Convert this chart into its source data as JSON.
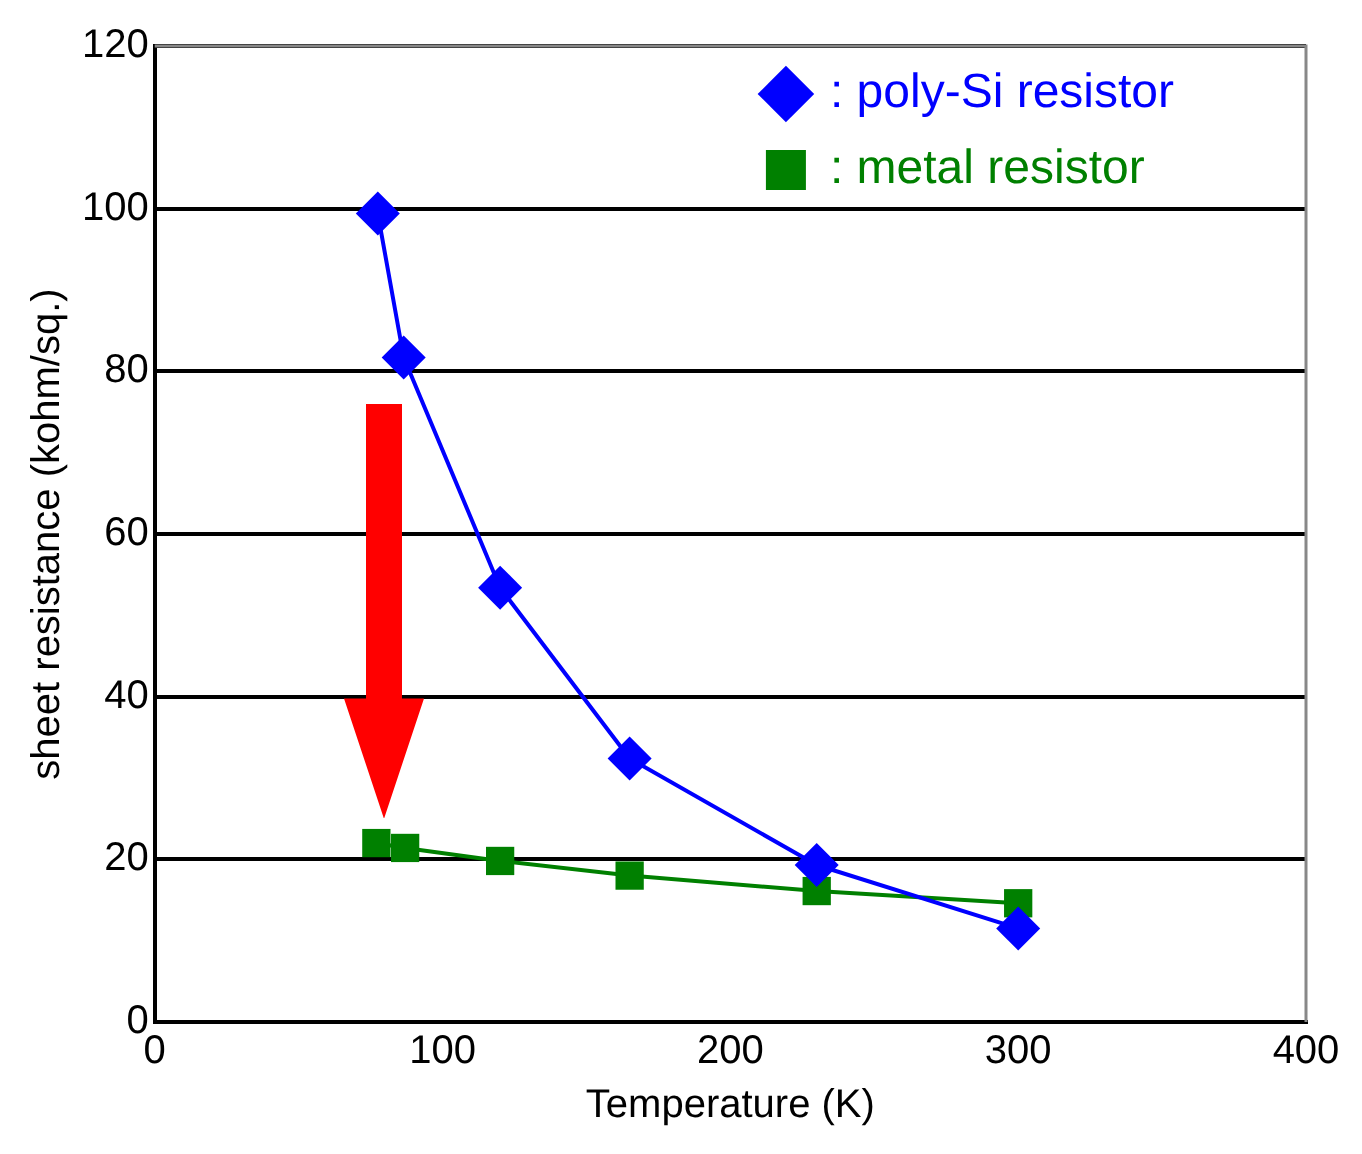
{
  "chart_data": {
    "type": "line",
    "xlabel": "Temperature (K)",
    "ylabel": "sheet resistance (kohm/sq.)",
    "xlim": [
      0,
      400
    ],
    "xticks": [
      0,
      100,
      200,
      300,
      400
    ],
    "ylim": [
      0,
      120
    ],
    "yticks": [
      0,
      20,
      40,
      60,
      80,
      100,
      120
    ],
    "grid": "y",
    "legend": "top right",
    "series": [
      {
        "name": ": poly-Si resistor",
        "color": "#0000ff",
        "marker": "diamond",
        "x": [
          77.5,
          86.5,
          120,
          165,
          230,
          300
        ],
        "values": [
          99.4,
          81.7,
          53.4,
          32.4,
          19.3,
          11.5
        ]
      },
      {
        "name": ": metal resistor",
        "color": "#008000",
        "marker": "square",
        "x": [
          77,
          87,
          120,
          165,
          230,
          300
        ],
        "values": [
          22.0,
          21.4,
          19.8,
          18.0,
          16.1,
          14.6
        ]
      }
    ]
  }
}
